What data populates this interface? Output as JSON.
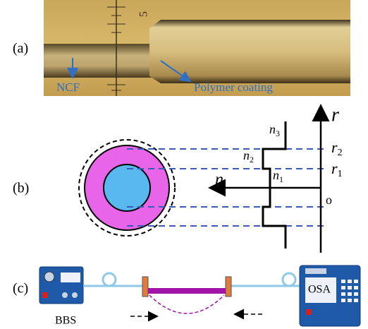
{
  "panels": [
    {
      "label": "(a)",
      "scale_mark": "5",
      "annotations": [
        "NCF",
        "Polymer coating"
      ]
    },
    {
      "label": "(b)",
      "axis_labels": {
        "vertical": "r",
        "horizontal": "n",
        "origin": "o"
      },
      "radii": [
        {
          "symbol": "r",
          "subscript": "2"
        },
        {
          "symbol": "r",
          "subscript": "1"
        }
      ],
      "indices": [
        {
          "symbol": "n",
          "subscript": "3"
        },
        {
          "symbol": "n",
          "subscript": "2"
        },
        {
          "symbol": "n",
          "subscript": "1"
        }
      ]
    },
    {
      "label": "(c)",
      "devices": [
        "BBS",
        "OSA"
      ]
    }
  ]
}
